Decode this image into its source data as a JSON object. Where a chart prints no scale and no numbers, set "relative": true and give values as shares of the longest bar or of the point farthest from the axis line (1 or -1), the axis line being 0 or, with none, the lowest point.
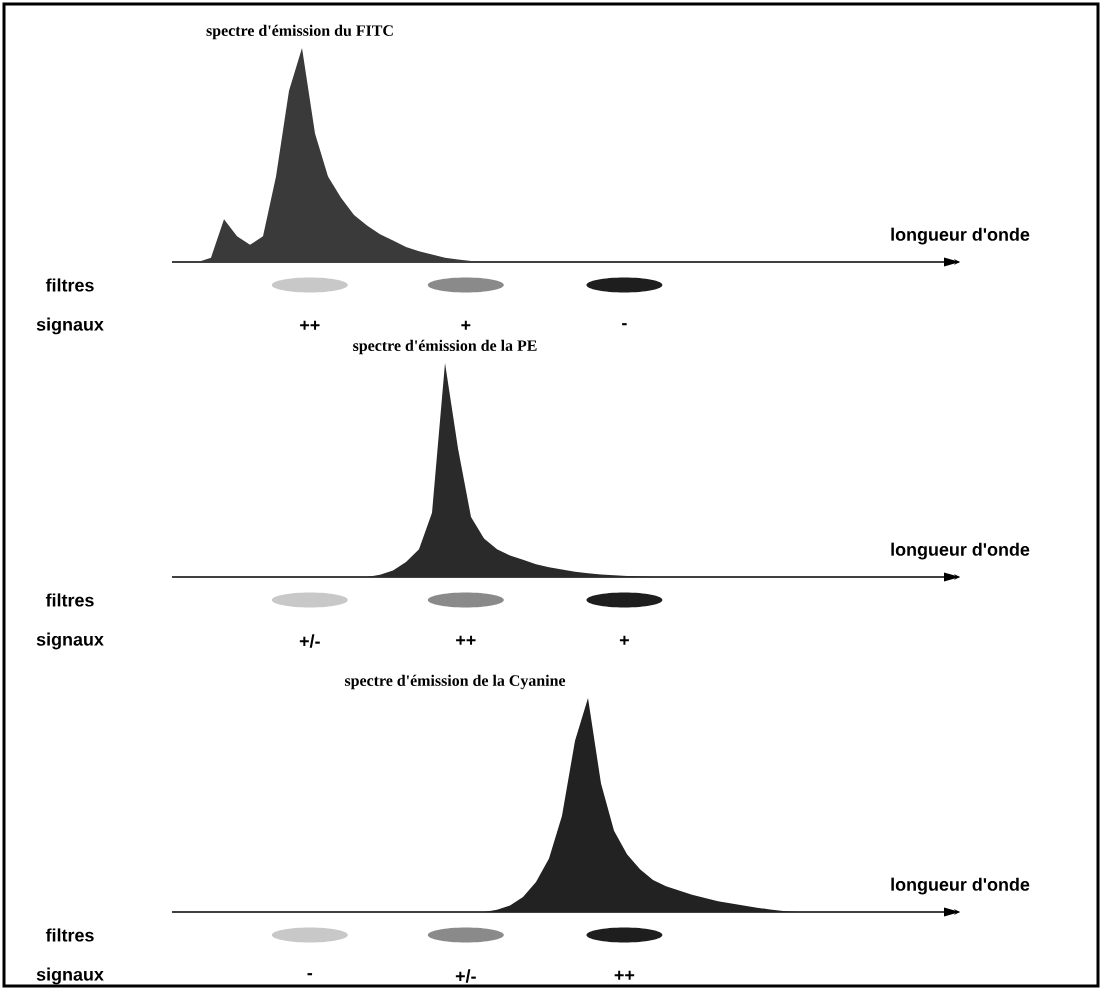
{
  "chart_data": [
    {
      "type": "area",
      "title": "spectre d'émission du FITC",
      "xlabel": "longueur d'onde",
      "relative": true,
      "color": "#3a3a3a",
      "categories": [
        null,
        null,
        null,
        null,
        null,
        null,
        null,
        null,
        null,
        null,
        null,
        null,
        null,
        null,
        null,
        null,
        null,
        null,
        null,
        null,
        null,
        null,
        null,
        null,
        null,
        null,
        null,
        null,
        null,
        null,
        null,
        null,
        null,
        null,
        null,
        null,
        null,
        null,
        null,
        null,
        null,
        null,
        null,
        null,
        null,
        null,
        null,
        null,
        null,
        null,
        null,
        null,
        null,
        null,
        null,
        null,
        null,
        null,
        null,
        null
      ],
      "values": [
        0,
        0,
        0,
        0.02,
        0.2,
        0.12,
        0.08,
        0.12,
        0.4,
        0.8,
        1,
        0.6,
        0.4,
        0.3,
        0.22,
        0.17,
        0.13,
        0.1,
        0.07,
        0.05,
        0.035,
        0.02,
        0.012,
        0.005,
        0,
        0,
        0,
        0,
        0,
        0,
        0,
        0,
        0,
        0,
        0,
        0,
        0,
        0,
        0,
        0,
        0,
        0,
        0,
        0,
        0,
        0,
        0,
        0,
        0,
        0,
        0,
        0,
        0,
        0,
        0,
        0,
        0,
        0,
        0,
        0
      ],
      "annotations": [
        "filtres",
        "signaux",
        "++",
        "+",
        "-"
      ]
    },
    {
      "type": "area",
      "title": "spectre d'émission de la PE",
      "xlabel": "longueur d'onde",
      "relative": true,
      "color": "#2a2a2a",
      "categories": [
        null,
        null,
        null,
        null,
        null,
        null,
        null,
        null,
        null,
        null,
        null,
        null,
        null,
        null,
        null,
        null,
        null,
        null,
        null,
        null,
        null,
        null,
        null,
        null,
        null,
        null,
        null,
        null,
        null,
        null,
        null,
        null,
        null,
        null,
        null,
        null,
        null,
        null,
        null,
        null,
        null,
        null,
        null,
        null,
        null,
        null,
        null,
        null,
        null,
        null,
        null,
        null,
        null,
        null,
        null,
        null,
        null,
        null,
        null,
        null
      ],
      "values": [
        0,
        0,
        0,
        0,
        0,
        0,
        0,
        0,
        0,
        0,
        0,
        0,
        0,
        0,
        0,
        0,
        0.01,
        0.03,
        0.07,
        0.13,
        0.3,
        1,
        0.6,
        0.28,
        0.18,
        0.13,
        0.1,
        0.08,
        0.06,
        0.045,
        0.035,
        0.025,
        0.018,
        0.012,
        0.008,
        0.005,
        0.002,
        0,
        0,
        0,
        0,
        0,
        0,
        0,
        0,
        0,
        0,
        0,
        0,
        0,
        0,
        0,
        0,
        0,
        0,
        0,
        0,
        0,
        0,
        0
      ],
      "annotations": [
        "filtres",
        "signaux",
        "+/-",
        "++",
        "+"
      ]
    },
    {
      "type": "area",
      "title": "spectre d'émission de la Cyanine",
      "xlabel": "longueur d'onde",
      "relative": true,
      "color": "#222222",
      "categories": [
        null,
        null,
        null,
        null,
        null,
        null,
        null,
        null,
        null,
        null,
        null,
        null,
        null,
        null,
        null,
        null,
        null,
        null,
        null,
        null,
        null,
        null,
        null,
        null,
        null,
        null,
        null,
        null,
        null,
        null,
        null,
        null,
        null,
        null,
        null,
        null,
        null,
        null,
        null,
        null,
        null,
        null,
        null,
        null,
        null,
        null,
        null,
        null,
        null,
        null,
        null,
        null,
        null,
        null,
        null,
        null,
        null,
        null,
        null,
        null
      ],
      "values": [
        0,
        0,
        0,
        0,
        0,
        0,
        0,
        0,
        0,
        0,
        0,
        0,
        0,
        0,
        0,
        0,
        0,
        0,
        0,
        0,
        0,
        0,
        0,
        0,
        0,
        0.01,
        0.03,
        0.07,
        0.14,
        0.25,
        0.45,
        0.8,
        1,
        0.6,
        0.38,
        0.27,
        0.2,
        0.15,
        0.12,
        0.1,
        0.08,
        0.065,
        0.05,
        0.04,
        0.03,
        0.02,
        0.012,
        0.005,
        0,
        0,
        0,
        0,
        0,
        0,
        0,
        0,
        0,
        0,
        0,
        0
      ],
      "annotations": [
        "filtres",
        "signaux",
        "-",
        "+/-",
        "++"
      ]
    }
  ]
}
